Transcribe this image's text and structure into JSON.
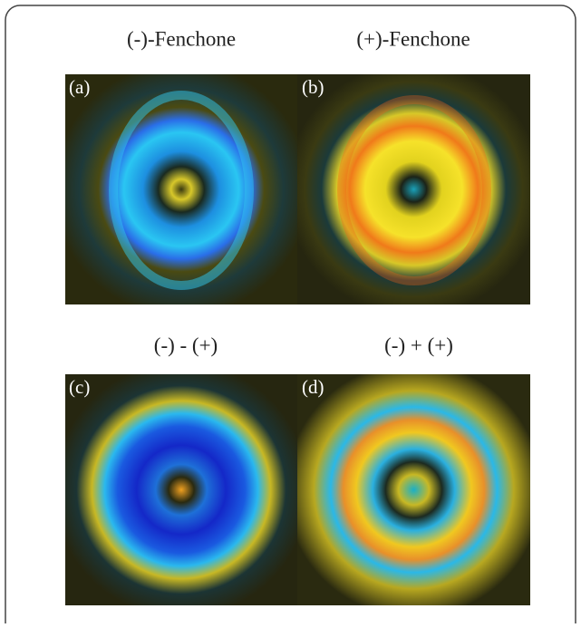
{
  "panels": [
    {
      "title": "(-)-Fenchone",
      "label": "(a)"
    },
    {
      "title": "(+)-Fenchone",
      "label": "(b)"
    },
    {
      "title": "(-) - (+)",
      "label": "(c)"
    },
    {
      "title": "(-) + (+)",
      "label": "(d)"
    }
  ]
}
